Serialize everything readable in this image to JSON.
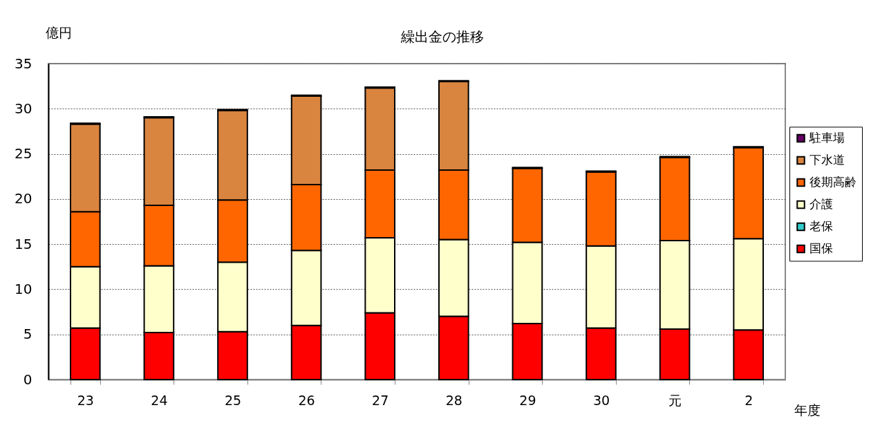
{
  "chart_data": {
    "type": "bar",
    "title": "繰出金の推移",
    "ylabel": "億円",
    "xlabel": "年度",
    "categories": [
      "23",
      "24",
      "25",
      "26",
      "27",
      "28",
      "29",
      "30",
      "元",
      "2"
    ],
    "stacked": true,
    "series": [
      {
        "name": "国保",
        "color": "#ff0000",
        "values": [
          5.7,
          5.2,
          5.3,
          6.0,
          7.4,
          7.0,
          6.2,
          5.7,
          5.6,
          5.5
        ]
      },
      {
        "name": "老保",
        "color": "#33cccc",
        "values": [
          null,
          null,
          null,
          null,
          null,
          null,
          null,
          null,
          null,
          null
        ]
      },
      {
        "name": "介護",
        "color": "#ffffcc",
        "values": [
          6.8,
          7.4,
          7.7,
          8.3,
          8.3,
          8.5,
          9.0,
          9.1,
          9.8,
          10.1
        ]
      },
      {
        "name": "後期高齢",
        "color": "#ff6600",
        "values": [
          6.1,
          6.7,
          6.9,
          7.3,
          7.5,
          7.7,
          8.2,
          8.2,
          9.2,
          10.1
        ]
      },
      {
        "name": "下水道",
        "color": "#d9843f",
        "values": [
          9.7,
          9.7,
          9.9,
          9.8,
          9.1,
          9.8,
          null,
          null,
          null,
          null
        ]
      },
      {
        "name": "駐車場",
        "color": "#660066",
        "values": [
          0.1,
          0.1,
          0.1,
          0.1,
          0.1,
          0.1,
          0.1,
          0.1,
          0.1,
          0.1
        ]
      }
    ],
    "ylim": [
      0,
      35
    ],
    "yticks": [
      0,
      5,
      10,
      15,
      20,
      25,
      30,
      35
    ],
    "grid": "y",
    "legend": "right"
  }
}
